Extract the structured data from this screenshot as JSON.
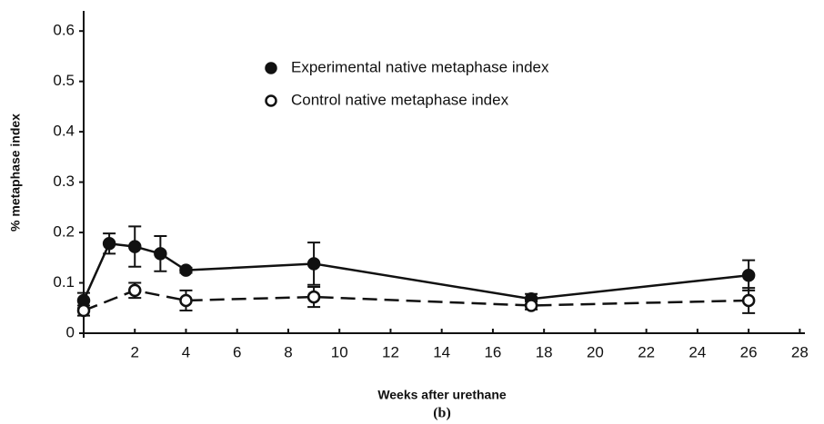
{
  "chart_data": {
    "type": "line",
    "xlabel": "Weeks after urethane",
    "ylabel": "% metaphase index",
    "caption": "(b)",
    "xlim": [
      0,
      28.2
    ],
    "ylim": [
      0,
      0.64
    ],
    "xticks": [
      2,
      4,
      6,
      8,
      10,
      12,
      14,
      16,
      18,
      20,
      22,
      24,
      26,
      28
    ],
    "yticks": [
      0,
      0.1,
      0.2,
      0.3,
      0.4,
      0.5,
      0.6
    ],
    "series": [
      {
        "name": "Experimental native metaphase index",
        "color": "#111111",
        "style": "solid",
        "marker": "filled",
        "x": [
          0,
          1,
          2,
          3,
          4,
          9,
          17.5,
          26
        ],
        "values": [
          0.065,
          0.178,
          0.172,
          0.158,
          0.125,
          0.138,
          0.068,
          0.115
        ],
        "errors": [
          0.015,
          0.02,
          0.04,
          0.035,
          0.005,
          0.042,
          0.01,
          0.03
        ]
      },
      {
        "name": "Control native metaphase index",
        "color": "#111111",
        "style": "dashed",
        "marker": "open",
        "x": [
          0,
          2,
          4,
          9,
          17.5,
          26
        ],
        "values": [
          0.045,
          0.085,
          0.065,
          0.072,
          0.055,
          0.065
        ],
        "errors": [
          0.01,
          0.015,
          0.02,
          0.02,
          0.008,
          0.025
        ]
      }
    ]
  }
}
